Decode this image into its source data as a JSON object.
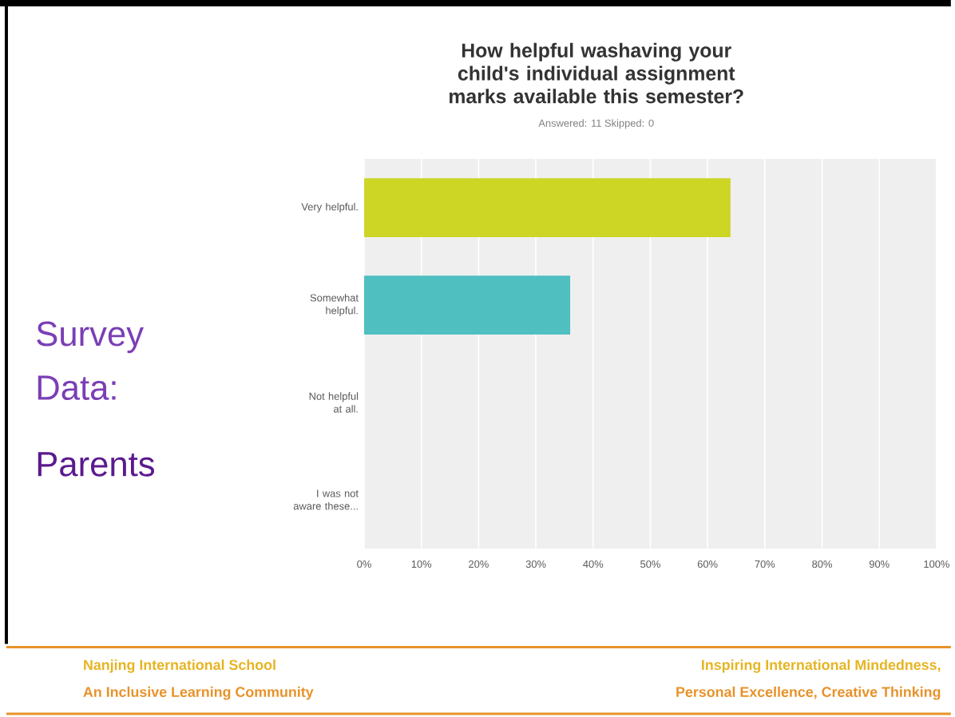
{
  "chart_data": {
    "type": "bar",
    "orientation": "horizontal",
    "title": "How helpful washaving your child's individual assignment marks available this semester?",
    "subtitle": "Answered: 11    Skipped: 0",
    "categories": [
      "Very helpful.",
      "Somewhat helpful.",
      "Not helpful at all.",
      "I was not aware these..."
    ],
    "values": [
      64,
      36,
      0,
      0
    ],
    "colors": [
      "#cdd525",
      "#4fbfc0",
      "#cdd525",
      "#4fbfc0"
    ],
    "xlim": [
      0,
      100
    ],
    "xticks": [
      {
        "value": 0,
        "label": "0%"
      },
      {
        "value": 10,
        "label": "10%"
      },
      {
        "value": 20,
        "label": "20%"
      },
      {
        "value": 30,
        "label": "30%"
      },
      {
        "value": 40,
        "label": "40%"
      },
      {
        "value": 50,
        "label": "50%"
      },
      {
        "value": 60,
        "label": "60%"
      },
      {
        "value": 70,
        "label": "70%"
      },
      {
        "value": 80,
        "label": "80%"
      },
      {
        "value": 90,
        "label": "90%"
      },
      {
        "value": 100,
        "label": "100%"
      }
    ],
    "grid": "x",
    "annotations": [
      "Survey Data:",
      "Parents",
      "Nanjing International School",
      "An Inclusive Learning Community",
      "Inspiring International Mindedness,",
      "Personal Excellence, Creative Thinking"
    ]
  }
}
